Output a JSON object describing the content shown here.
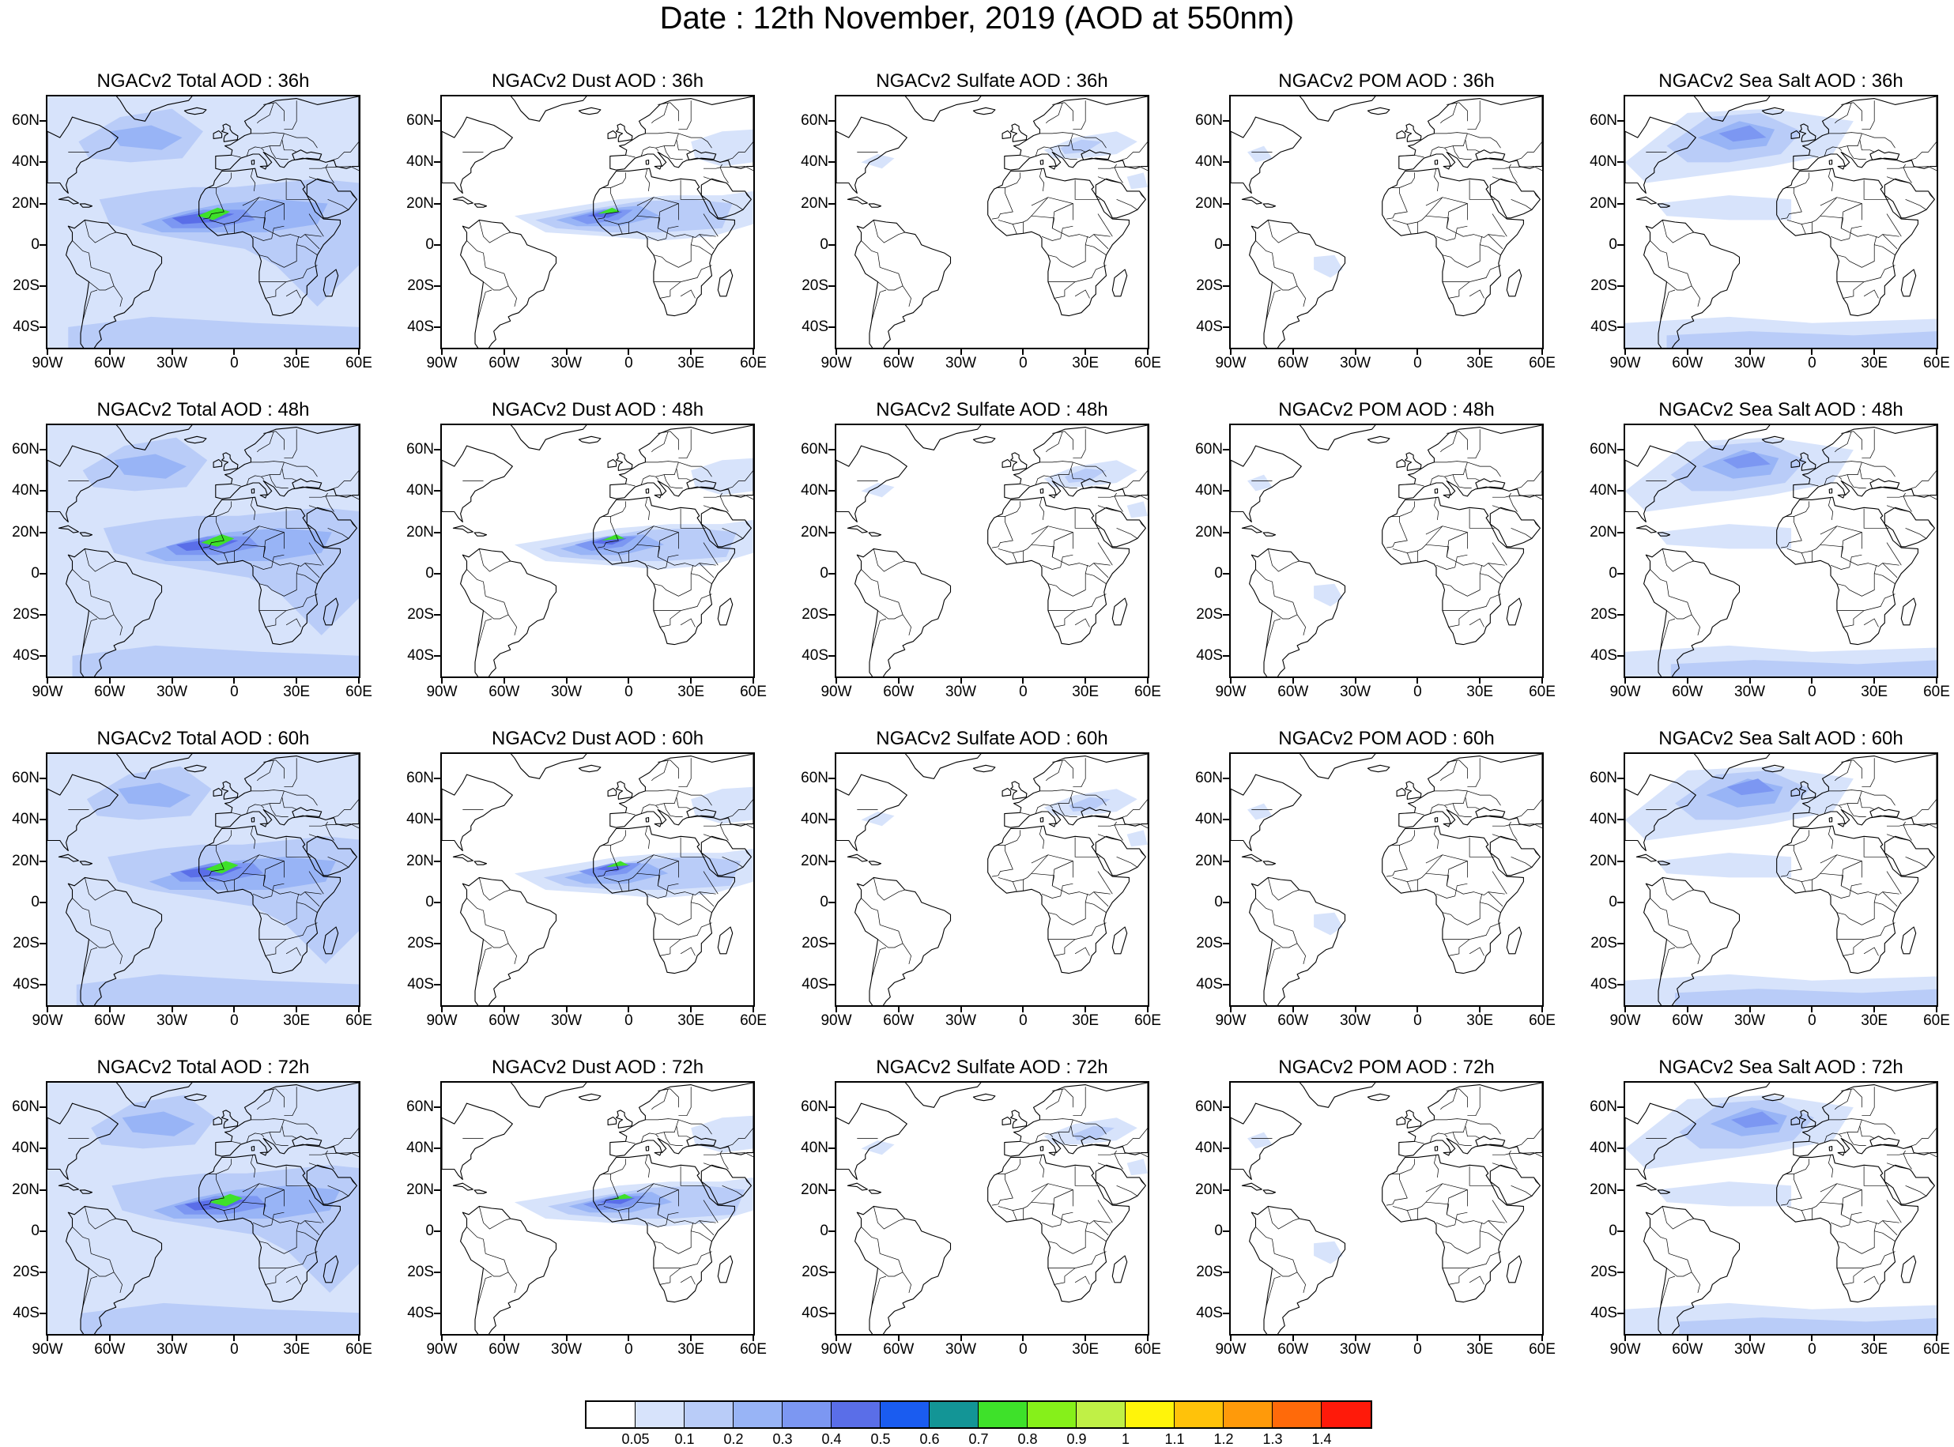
{
  "title": "Date : 12th November, 2019 (AOD at 550nm)",
  "map_axes": {
    "lat_labels": [
      "60N",
      "40N",
      "20N",
      "0",
      "20S",
      "40S"
    ],
    "lat_values": [
      60,
      40,
      20,
      0,
      -20,
      -40
    ],
    "lon_labels": [
      "90W",
      "60W",
      "30W",
      "0",
      "30E",
      "60E"
    ],
    "lon_values": [
      -90,
      -60,
      -30,
      0,
      30,
      60
    ],
    "lon_range": [
      -90,
      60
    ],
    "lat_range": [
      -50,
      72
    ]
  },
  "hours": [
    "36h",
    "48h",
    "60h",
    "72h"
  ],
  "species": [
    "total",
    "dust",
    "sulfate",
    "pom",
    "seasalt"
  ],
  "panels": [
    [
      "NGACv2 Total AOD : 36h",
      "NGACv2 Dust AOD : 36h",
      "NGACv2 Sulfate AOD : 36h",
      "NGACv2 POM AOD : 36h",
      "NGACv2 Sea Salt AOD : 36h"
    ],
    [
      "NGACv2 Total AOD : 48h",
      "NGACv2 Dust AOD : 48h",
      "NGACv2 Sulfate AOD : 48h",
      "NGACv2 POM AOD : 48h",
      "NGACv2 Sea Salt AOD : 48h"
    ],
    [
      "NGACv2 Total AOD : 60h",
      "NGACv2 Dust AOD : 60h",
      "NGACv2 Sulfate AOD : 60h",
      "NGACv2 POM AOD : 60h",
      "NGACv2 Sea Salt AOD : 60h"
    ],
    [
      "NGACv2 Total AOD : 72h",
      "NGACv2 Dust AOD : 72h",
      "NGACv2 Sulfate AOD : 72h",
      "NGACv2 POM AOD : 72h",
      "NGACv2 Sea Salt  AOD : 72h"
    ]
  ],
  "colorbar": {
    "labels": [
      "0.05",
      "0.1",
      "0.2",
      "0.3",
      "0.4",
      "0.5",
      "0.6",
      "0.7",
      "0.8",
      "0.9",
      "1",
      "1.1",
      "1.2",
      "1.3",
      "1.4"
    ],
    "colors": [
      "#ffffff",
      "#d7e3fb",
      "#b9ccf8",
      "#98b4f6",
      "#7c97f2",
      "#5a6ee8",
      "#1a5cf0",
      "#139596",
      "#3ee12a",
      "#86f01a",
      "#c0f046",
      "#fff40a",
      "#ffc20a",
      "#ff9a0a",
      "#ff6a0a",
      "#ff1a0a"
    ]
  }
}
